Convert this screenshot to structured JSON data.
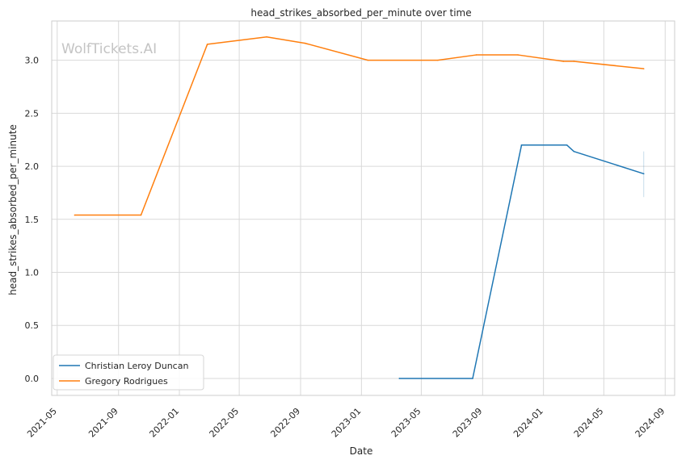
{
  "chart_data": {
    "type": "line",
    "title": "head_strikes_absorbed_per_minute over time",
    "xlabel": "Date",
    "ylabel": "head_strikes_absorbed_per_minute",
    "watermark": "WolfTickets.AI",
    "x_ticks": [
      "2021-05",
      "2021-09",
      "2022-01",
      "2022-05",
      "2022-09",
      "2023-01",
      "2023-05",
      "2023-09",
      "2024-01",
      "2024-05",
      "2024-09"
    ],
    "y_ticks": [
      "0.0",
      "0.5",
      "1.0",
      "1.5",
      "2.0",
      "2.5",
      "3.0"
    ],
    "xlim": [
      "2021-04-20",
      "2024-09-20"
    ],
    "ylim": [
      -0.16,
      3.37
    ],
    "grid": true,
    "legend_position": "lower-left",
    "series": [
      {
        "name": "Christian Leroy Duncan",
        "color": "#1f77b4",
        "points": [
          {
            "x": "2023-03-18",
            "y": 0.0
          },
          {
            "x": "2023-08-12",
            "y": 0.0
          },
          {
            "x": "2023-11-18",
            "y": 2.2
          },
          {
            "x": "2024-02-17",
            "y": 2.2
          },
          {
            "x": "2024-03-02",
            "y": 2.14
          },
          {
            "x": "2024-07-20",
            "y": 1.93
          }
        ],
        "error_bar": {
          "x": "2024-07-20",
          "low": 1.71,
          "high": 2.14
        }
      },
      {
        "name": "Gregory Rodrigues",
        "color": "#ff7f0e",
        "points": [
          {
            "x": "2021-06-05",
            "y": 1.54
          },
          {
            "x": "2021-10-16",
            "y": 1.54
          },
          {
            "x": "2022-02-26",
            "y": 3.15
          },
          {
            "x": "2022-06-25",
            "y": 3.22
          },
          {
            "x": "2022-09-10",
            "y": 3.16
          },
          {
            "x": "2023-01-14",
            "y": 3.0
          },
          {
            "x": "2023-06-03",
            "y": 3.0
          },
          {
            "x": "2023-08-19",
            "y": 3.05
          },
          {
            "x": "2023-11-11",
            "y": 3.05
          },
          {
            "x": "2024-02-10",
            "y": 2.99
          },
          {
            "x": "2024-03-02",
            "y": 2.99
          },
          {
            "x": "2024-07-20",
            "y": 2.92
          }
        ]
      }
    ]
  }
}
